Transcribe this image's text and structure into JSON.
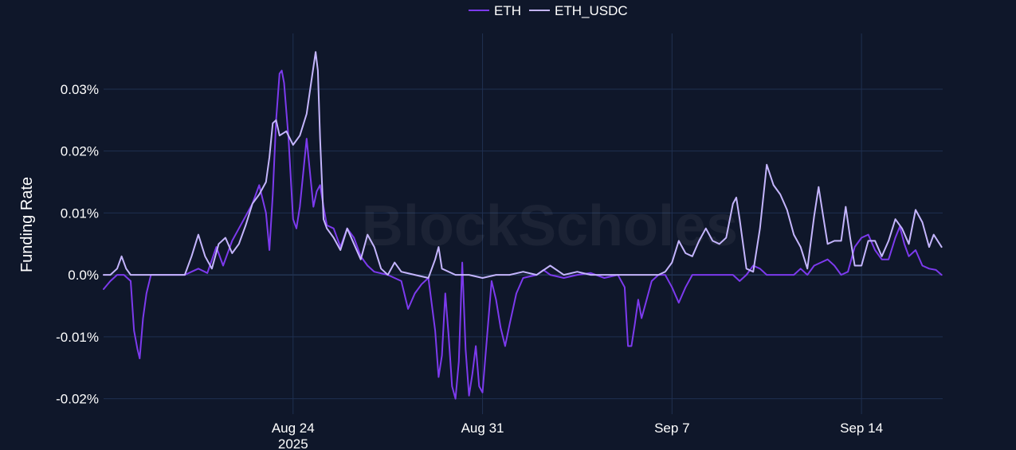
{
  "watermark": "BlockScholes",
  "chart_data": {
    "type": "line",
    "ylabel": "Funding Rate",
    "x_range": [
      "2025-08-17",
      "2025-09-17"
    ],
    "ylim": [
      -0.0225,
      0.039
    ],
    "y_ticks": [
      {
        "value": 0.03,
        "label": "0.03%"
      },
      {
        "value": 0.02,
        "label": "0.02%"
      },
      {
        "value": 0.01,
        "label": "0.01%"
      },
      {
        "value": 0.0,
        "label": "0.0%"
      },
      {
        "value": -0.01,
        "label": "-0.01%"
      },
      {
        "value": -0.02,
        "label": "-0.02%"
      }
    ],
    "x_ticks": [
      {
        "value": "2025-08-24",
        "label": "Aug 24",
        "sublabel": "2025"
      },
      {
        "value": "2025-08-31",
        "label": "Aug 31",
        "sublabel": ""
      },
      {
        "value": "2025-09-07",
        "label": "Sep 7",
        "sublabel": ""
      },
      {
        "value": "2025-09-14",
        "label": "Sep 14",
        "sublabel": ""
      }
    ],
    "grid": true,
    "legend_position": "top-center",
    "series": [
      {
        "name": "ETH",
        "color": "#7c3aed",
        "points": [
          [
            "2025-08-17T00:00",
            -0.0023
          ],
          [
            "2025-08-17T06:00",
            -0.001
          ],
          [
            "2025-08-17T12:00",
            0.0
          ],
          [
            "2025-08-17T18:00",
            0.0
          ],
          [
            "2025-08-18T00:00",
            -0.001
          ],
          [
            "2025-08-18T03:00",
            -0.009
          ],
          [
            "2025-08-18T06:00",
            -0.012
          ],
          [
            "2025-08-18T08:00",
            -0.0135
          ],
          [
            "2025-08-18T11:00",
            -0.007
          ],
          [
            "2025-08-18T14:00",
            -0.003
          ],
          [
            "2025-08-18T18:00",
            0.0
          ],
          [
            "2025-08-19T00:00",
            0.0
          ],
          [
            "2025-08-19T12:00",
            0.0
          ],
          [
            "2025-08-20T00:00",
            0.0
          ],
          [
            "2025-08-20T06:00",
            0.0005
          ],
          [
            "2025-08-20T12:00",
            0.001
          ],
          [
            "2025-08-20T20:00",
            0.0003
          ],
          [
            "2025-08-21T04:00",
            0.0045
          ],
          [
            "2025-08-21T10:00",
            0.0015
          ],
          [
            "2025-08-21T18:00",
            0.0055
          ],
          [
            "2025-08-22T00:00",
            0.0075
          ],
          [
            "2025-08-22T06:00",
            0.0095
          ],
          [
            "2025-08-22T12:00",
            0.0115
          ],
          [
            "2025-08-22T18:00",
            0.0145
          ],
          [
            "2025-08-23T00:00",
            0.01
          ],
          [
            "2025-08-23T03:00",
            0.004
          ],
          [
            "2025-08-23T06:00",
            0.013
          ],
          [
            "2025-08-23T09:00",
            0.025
          ],
          [
            "2025-08-23T12:00",
            0.0325
          ],
          [
            "2025-08-23T14:00",
            0.033
          ],
          [
            "2025-08-23T16:00",
            0.031
          ],
          [
            "2025-08-23T20:00",
            0.022
          ],
          [
            "2025-08-24T00:00",
            0.009
          ],
          [
            "2025-08-24T03:00",
            0.0075
          ],
          [
            "2025-08-24T06:00",
            0.011
          ],
          [
            "2025-08-24T12:00",
            0.022
          ],
          [
            "2025-08-24T18:00",
            0.011
          ],
          [
            "2025-08-24T21:00",
            0.0135
          ],
          [
            "2025-08-25T00:00",
            0.0145
          ],
          [
            "2025-08-25T03:00",
            0.011
          ],
          [
            "2025-08-25T06:00",
            0.008
          ],
          [
            "2025-08-25T12:00",
            0.0075
          ],
          [
            "2025-08-25T18:00",
            0.0045
          ],
          [
            "2025-08-26T00:00",
            0.0075
          ],
          [
            "2025-08-26T06:00",
            0.006
          ],
          [
            "2025-08-26T12:00",
            0.003
          ],
          [
            "2025-08-26T18:00",
            0.0015
          ],
          [
            "2025-08-27T00:00",
            0.0005
          ],
          [
            "2025-08-27T12:00",
            0.0
          ],
          [
            "2025-08-28T00:00",
            -0.001
          ],
          [
            "2025-08-28T06:00",
            -0.0055
          ],
          [
            "2025-08-28T12:00",
            -0.003
          ],
          [
            "2025-08-28T18:00",
            -0.0015
          ],
          [
            "2025-08-29T00:00",
            -0.0005
          ],
          [
            "2025-08-29T06:00",
            -0.009
          ],
          [
            "2025-08-29T09:00",
            -0.0165
          ],
          [
            "2025-08-29T12:00",
            -0.013
          ],
          [
            "2025-08-29T15:00",
            -0.003
          ],
          [
            "2025-08-29T18:00",
            -0.01
          ],
          [
            "2025-08-29T21:00",
            -0.018
          ],
          [
            "2025-08-30T00:00",
            -0.02
          ],
          [
            "2025-08-30T03:00",
            -0.014
          ],
          [
            "2025-08-30T06:00",
            0.002
          ],
          [
            "2025-08-30T09:00",
            -0.012
          ],
          [
            "2025-08-30T12:00",
            -0.0195
          ],
          [
            "2025-08-30T15:00",
            -0.016
          ],
          [
            "2025-08-30T18:00",
            -0.0115
          ],
          [
            "2025-08-30T21:00",
            -0.018
          ],
          [
            "2025-08-31T00:00",
            -0.019
          ],
          [
            "2025-08-31T04:00",
            -0.01
          ],
          [
            "2025-08-31T08:00",
            -0.001
          ],
          [
            "2025-08-31T12:00",
            -0.004
          ],
          [
            "2025-08-31T16:00",
            -0.0085
          ],
          [
            "2025-08-31T20:00",
            -0.0115
          ],
          [
            "2025-09-01T00:00",
            -0.008
          ],
          [
            "2025-09-01T06:00",
            -0.003
          ],
          [
            "2025-09-01T12:00",
            -0.0005
          ],
          [
            "2025-09-02T00:00",
            0.0
          ],
          [
            "2025-09-02T06:00",
            0.0008
          ],
          [
            "2025-09-02T12:00",
            0.0
          ],
          [
            "2025-09-03T00:00",
            -0.0005
          ],
          [
            "2025-09-03T12:00",
            0.0
          ],
          [
            "2025-09-04T00:00",
            0.0003
          ],
          [
            "2025-09-04T12:00",
            -0.0005
          ],
          [
            "2025-09-05T00:00",
            0.0
          ],
          [
            "2025-09-05T06:00",
            -0.002
          ],
          [
            "2025-09-05T09:00",
            -0.0115
          ],
          [
            "2025-09-05T12:00",
            -0.0115
          ],
          [
            "2025-09-05T15:00",
            -0.008
          ],
          [
            "2025-09-05T18:00",
            -0.004
          ],
          [
            "2025-09-05T21:00",
            -0.007
          ],
          [
            "2025-09-06T00:00",
            -0.005
          ],
          [
            "2025-09-06T06:00",
            -0.001
          ],
          [
            "2025-09-06T12:00",
            0.0
          ],
          [
            "2025-09-06T18:00",
            0.0
          ],
          [
            "2025-09-07T00:00",
            -0.002
          ],
          [
            "2025-09-07T06:00",
            -0.0045
          ],
          [
            "2025-09-07T12:00",
            -0.002
          ],
          [
            "2025-09-07T18:00",
            0.0
          ],
          [
            "2025-09-08T12:00",
            0.0
          ],
          [
            "2025-09-09T00:00",
            0.0
          ],
          [
            "2025-09-09T06:00",
            0.0
          ],
          [
            "2025-09-09T12:00",
            -0.001
          ],
          [
            "2025-09-09T18:00",
            0.0
          ],
          [
            "2025-09-10T00:00",
            0.0015
          ],
          [
            "2025-09-10T06:00",
            0.001
          ],
          [
            "2025-09-10T12:00",
            0.0
          ],
          [
            "2025-09-11T00:00",
            0.0
          ],
          [
            "2025-09-11T12:00",
            0.0
          ],
          [
            "2025-09-11T18:00",
            0.001
          ],
          [
            "2025-09-12T00:00",
            0.0
          ],
          [
            "2025-09-12T06:00",
            0.0015
          ],
          [
            "2025-09-12T12:00",
            0.002
          ],
          [
            "2025-09-12T18:00",
            0.0025
          ],
          [
            "2025-09-13T00:00",
            0.0015
          ],
          [
            "2025-09-13T06:00",
            0.0
          ],
          [
            "2025-09-13T12:00",
            0.0005
          ],
          [
            "2025-09-13T18:00",
            0.0045
          ],
          [
            "2025-09-14T00:00",
            0.006
          ],
          [
            "2025-09-14T06:00",
            0.0065
          ],
          [
            "2025-09-14T12:00",
            0.004
          ],
          [
            "2025-09-14T18:00",
            0.0025
          ],
          [
            "2025-09-15T00:00",
            0.0025
          ],
          [
            "2025-09-15T06:00",
            0.006
          ],
          [
            "2025-09-15T10:00",
            0.0078
          ],
          [
            "2025-09-15T14:00",
            0.005
          ],
          [
            "2025-09-15T18:00",
            0.003
          ],
          [
            "2025-09-16T00:00",
            0.004
          ],
          [
            "2025-09-16T06:00",
            0.0015
          ],
          [
            "2025-09-16T12:00",
            0.001
          ],
          [
            "2025-09-16T18:00",
            0.0008
          ],
          [
            "2025-09-16T23:00",
            0.0
          ]
        ]
      },
      {
        "name": "ETH_USDC",
        "color": "#c4b5fd",
        "points": [
          [
            "2025-08-17T00:00",
            0.0
          ],
          [
            "2025-08-17T06:00",
            0.0
          ],
          [
            "2025-08-17T12:00",
            0.001
          ],
          [
            "2025-08-17T16:00",
            0.003
          ],
          [
            "2025-08-17T20:00",
            0.001
          ],
          [
            "2025-08-18T00:00",
            0.0
          ],
          [
            "2025-08-18T12:00",
            0.0
          ],
          [
            "2025-08-19T00:00",
            0.0
          ],
          [
            "2025-08-19T12:00",
            0.0
          ],
          [
            "2025-08-20T00:00",
            0.0
          ],
          [
            "2025-08-20T06:00",
            0.003
          ],
          [
            "2025-08-20T12:00",
            0.0065
          ],
          [
            "2025-08-20T18:00",
            0.003
          ],
          [
            "2025-08-21T00:00",
            0.001
          ],
          [
            "2025-08-21T06:00",
            0.005
          ],
          [
            "2025-08-21T12:00",
            0.006
          ],
          [
            "2025-08-21T18:00",
            0.0035
          ],
          [
            "2025-08-22T00:00",
            0.005
          ],
          [
            "2025-08-22T06:00",
            0.008
          ],
          [
            "2025-08-22T12:00",
            0.0115
          ],
          [
            "2025-08-22T18:00",
            0.013
          ],
          [
            "2025-08-23T00:00",
            0.015
          ],
          [
            "2025-08-23T03:00",
            0.019
          ],
          [
            "2025-08-23T06:00",
            0.0245
          ],
          [
            "2025-08-23T09:00",
            0.025
          ],
          [
            "2025-08-23T12:00",
            0.0225
          ],
          [
            "2025-08-23T18:00",
            0.0232
          ],
          [
            "2025-08-24T00:00",
            0.021
          ],
          [
            "2025-08-24T06:00",
            0.0225
          ],
          [
            "2025-08-24T12:00",
            0.026
          ],
          [
            "2025-08-24T16:00",
            0.031
          ],
          [
            "2025-08-24T20:00",
            0.036
          ],
          [
            "2025-08-24T22:00",
            0.033
          ],
          [
            "2025-08-25T00:00",
            0.022
          ],
          [
            "2025-08-25T03:00",
            0.009
          ],
          [
            "2025-08-25T06:00",
            0.0075
          ],
          [
            "2025-08-25T12:00",
            0.006
          ],
          [
            "2025-08-25T18:00",
            0.004
          ],
          [
            "2025-08-26T00:00",
            0.0075
          ],
          [
            "2025-08-26T06:00",
            0.005
          ],
          [
            "2025-08-26T12:00",
            0.0025
          ],
          [
            "2025-08-26T18:00",
            0.0065
          ],
          [
            "2025-08-27T00:00",
            0.0045
          ],
          [
            "2025-08-27T06:00",
            0.001
          ],
          [
            "2025-08-27T12:00",
            0.0
          ],
          [
            "2025-08-27T18:00",
            0.002
          ],
          [
            "2025-08-28T00:00",
            0.0005
          ],
          [
            "2025-08-28T12:00",
            0.0
          ],
          [
            "2025-08-29T00:00",
            -0.0005
          ],
          [
            "2025-08-29T06:00",
            0.0025
          ],
          [
            "2025-08-29T09:00",
            0.0045
          ],
          [
            "2025-08-29T12:00",
            0.001
          ],
          [
            "2025-08-30T00:00",
            0.0
          ],
          [
            "2025-08-30T12:00",
            0.0
          ],
          [
            "2025-08-31T00:00",
            -0.0005
          ],
          [
            "2025-08-31T12:00",
            0.0
          ],
          [
            "2025-09-01T00:00",
            0.0
          ],
          [
            "2025-09-01T12:00",
            0.0005
          ],
          [
            "2025-09-02T00:00",
            0.0
          ],
          [
            "2025-09-02T12:00",
            0.0015
          ],
          [
            "2025-09-03T00:00",
            0.0
          ],
          [
            "2025-09-03T12:00",
            0.0005
          ],
          [
            "2025-09-04T00:00",
            0.0
          ],
          [
            "2025-09-04T12:00",
            0.0
          ],
          [
            "2025-09-05T00:00",
            0.0
          ],
          [
            "2025-09-05T12:00",
            0.0
          ],
          [
            "2025-09-06T00:00",
            0.0
          ],
          [
            "2025-09-06T12:00",
            0.0
          ],
          [
            "2025-09-06T18:00",
            0.0005
          ],
          [
            "2025-09-07T00:00",
            0.002
          ],
          [
            "2025-09-07T06:00",
            0.0055
          ],
          [
            "2025-09-07T12:00",
            0.0035
          ],
          [
            "2025-09-07T18:00",
            0.003
          ],
          [
            "2025-09-08T00:00",
            0.0055
          ],
          [
            "2025-09-08T06:00",
            0.0075
          ],
          [
            "2025-09-08T12:00",
            0.0055
          ],
          [
            "2025-09-08T18:00",
            0.005
          ],
          [
            "2025-09-09T00:00",
            0.006
          ],
          [
            "2025-09-09T06:00",
            0.0115
          ],
          [
            "2025-09-09T09:00",
            0.0125
          ],
          [
            "2025-09-09T12:00",
            0.009
          ],
          [
            "2025-09-09T18:00",
            0.001
          ],
          [
            "2025-09-10T00:00",
            0.0005
          ],
          [
            "2025-09-10T06:00",
            0.0075
          ],
          [
            "2025-09-10T12:00",
            0.0178
          ],
          [
            "2025-09-10T18:00",
            0.0145
          ],
          [
            "2025-09-11T00:00",
            0.013
          ],
          [
            "2025-09-11T06:00",
            0.0105
          ],
          [
            "2025-09-11T12:00",
            0.0065
          ],
          [
            "2025-09-11T18:00",
            0.0045
          ],
          [
            "2025-09-12T00:00",
            0.001
          ],
          [
            "2025-09-12T06:00",
            0.0095
          ],
          [
            "2025-09-12T10:00",
            0.0142
          ],
          [
            "2025-09-12T14:00",
            0.0095
          ],
          [
            "2025-09-12T18:00",
            0.005
          ],
          [
            "2025-09-13T00:00",
            0.0055
          ],
          [
            "2025-09-13T06:00",
            0.0055
          ],
          [
            "2025-09-13T10:00",
            0.011
          ],
          [
            "2025-09-13T14:00",
            0.006
          ],
          [
            "2025-09-13T18:00",
            0.0015
          ],
          [
            "2025-09-14T00:00",
            0.0015
          ],
          [
            "2025-09-14T06:00",
            0.0055
          ],
          [
            "2025-09-14T12:00",
            0.0055
          ],
          [
            "2025-09-14T18:00",
            0.003
          ],
          [
            "2025-09-15T00:00",
            0.0055
          ],
          [
            "2025-09-15T06:00",
            0.009
          ],
          [
            "2025-09-15T12:00",
            0.0075
          ],
          [
            "2025-09-15T18:00",
            0.005
          ],
          [
            "2025-09-16T00:00",
            0.0105
          ],
          [
            "2025-09-16T06:00",
            0.0085
          ],
          [
            "2025-09-16T12:00",
            0.0045
          ],
          [
            "2025-09-16T16:00",
            0.0065
          ],
          [
            "2025-09-16T23:00",
            0.0045
          ]
        ]
      }
    ]
  }
}
